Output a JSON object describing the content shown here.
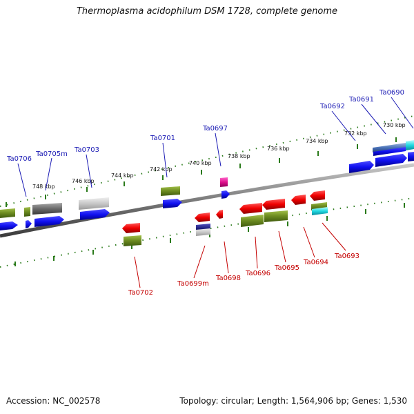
{
  "title": "Thermoplasma acidophilum DSM 1728, complete genome",
  "footer": {
    "accession": "Accession: NC_002578",
    "topology": "Topology: circular; Length: 1,564,906 bp; Genes: 1,530"
  },
  "colors": {
    "forward_label": "#1a1ab4",
    "reverse_label": "#c40000",
    "backbone": "#8c8c8c",
    "tick": "#2a7a1a"
  },
  "tick_labels": [
    "748 kbp",
    "746 kbp",
    "744 kbp",
    "742 kbp",
    "740 kbp",
    "738 kbp",
    "736 kbp",
    "734 kbp",
    "732 kbp",
    "730 kbp"
  ],
  "forward_genes": [
    "Ta0706",
    "Ta0705m",
    "Ta0703",
    "Ta0701",
    "Ta0697",
    "Ta0692",
    "Ta0691",
    "Ta0690"
  ],
  "reverse_genes": [
    "Ta0702",
    "Ta0699m",
    "Ta0698",
    "Ta0696",
    "Ta0695",
    "Ta0694",
    "Ta0693"
  ]
}
